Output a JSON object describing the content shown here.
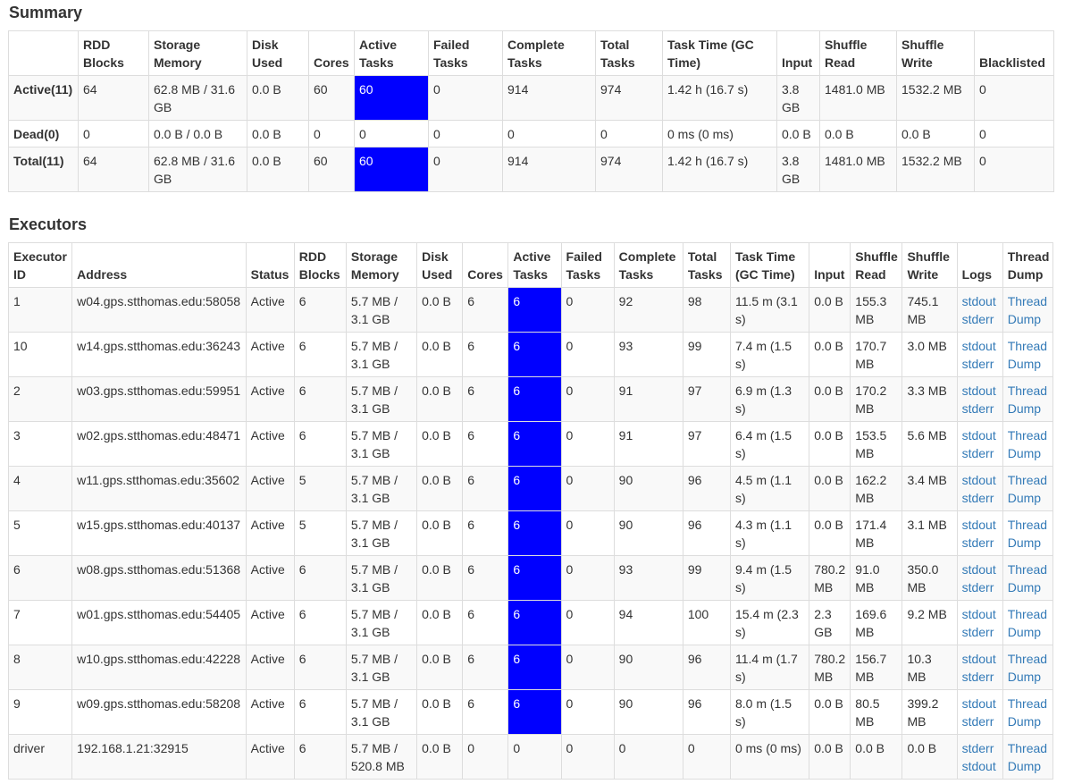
{
  "accent_color": "#0000ff",
  "link_color": "#337ab7",
  "summary": {
    "title": "Summary",
    "headers": [
      "",
      "RDD Blocks",
      "Storage Memory",
      "Disk Used",
      "Cores",
      "Active Tasks",
      "Failed Tasks",
      "Complete Tasks",
      "Total Tasks",
      "Task Time (GC Time)",
      "Input",
      "Shuffle Read",
      "Shuffle Write",
      "Blacklisted"
    ],
    "rows": [
      {
        "label": "Active(11)",
        "rdd": "64",
        "storage": "62.8 MB / 31.6 GB",
        "disk": "0.0 B",
        "cores": "60",
        "active": "60",
        "active_highlight": true,
        "failed": "0",
        "complete": "914",
        "total": "974",
        "task_time": "1.42 h (16.7 s)",
        "input": "3.8 GB",
        "shuffle_read": "1481.0 MB",
        "shuffle_write": "1532.2 MB",
        "blacklisted": "0"
      },
      {
        "label": "Dead(0)",
        "rdd": "0",
        "storage": "0.0 B / 0.0 B",
        "disk": "0.0 B",
        "cores": "0",
        "active": "0",
        "active_highlight": false,
        "failed": "0",
        "complete": "0",
        "total": "0",
        "task_time": "0 ms (0 ms)",
        "input": "0.0 B",
        "shuffle_read": "0.0 B",
        "shuffle_write": "0.0 B",
        "blacklisted": "0"
      },
      {
        "label": "Total(11)",
        "rdd": "64",
        "storage": "62.8 MB / 31.6 GB",
        "disk": "0.0 B",
        "cores": "60",
        "active": "60",
        "active_highlight": true,
        "failed": "0",
        "complete": "914",
        "total": "974",
        "task_time": "1.42 h (16.7 s)",
        "input": "3.8 GB",
        "shuffle_read": "1481.0 MB",
        "shuffle_write": "1532.2 MB",
        "blacklisted": "0"
      }
    ]
  },
  "executors": {
    "title": "Executors",
    "headers": [
      "Executor ID",
      "Address",
      "Status",
      "RDD Blocks",
      "Storage Memory",
      "Disk Used",
      "Cores",
      "Active Tasks",
      "Failed Tasks",
      "Complete Tasks",
      "Total Tasks",
      "Task Time (GC Time)",
      "Input",
      "Shuffle Read",
      "Shuffle Write",
      "Logs",
      "Thread Dump"
    ],
    "rows": [
      {
        "id": "1",
        "address": "w04.gps.stthomas.edu:58058",
        "status": "Active",
        "rdd": "6",
        "storage": "5.7 MB / 3.1 GB",
        "disk": "0.0 B",
        "cores": "6",
        "active": "6",
        "active_highlight": true,
        "failed": "0",
        "complete": "92",
        "total": "98",
        "task_time": "11.5 m (3.1 s)",
        "input": "0.0 B",
        "shuffle_read": "155.3 MB",
        "shuffle_write": "745.1 MB",
        "logs": [
          "stdout",
          "stderr"
        ],
        "thread_dump": "Thread Dump"
      },
      {
        "id": "10",
        "address": "w14.gps.stthomas.edu:36243",
        "status": "Active",
        "rdd": "6",
        "storage": "5.7 MB / 3.1 GB",
        "disk": "0.0 B",
        "cores": "6",
        "active": "6",
        "active_highlight": true,
        "failed": "0",
        "complete": "93",
        "total": "99",
        "task_time": "7.4 m (1.5 s)",
        "input": "0.0 B",
        "shuffle_read": "170.7 MB",
        "shuffle_write": "3.0 MB",
        "logs": [
          "stdout",
          "stderr"
        ],
        "thread_dump": "Thread Dump"
      },
      {
        "id": "2",
        "address": "w03.gps.stthomas.edu:59951",
        "status": "Active",
        "rdd": "6",
        "storage": "5.7 MB / 3.1 GB",
        "disk": "0.0 B",
        "cores": "6",
        "active": "6",
        "active_highlight": true,
        "failed": "0",
        "complete": "91",
        "total": "97",
        "task_time": "6.9 m (1.3 s)",
        "input": "0.0 B",
        "shuffle_read": "170.2 MB",
        "shuffle_write": "3.3 MB",
        "logs": [
          "stdout",
          "stderr"
        ],
        "thread_dump": "Thread Dump"
      },
      {
        "id": "3",
        "address": "w02.gps.stthomas.edu:48471",
        "status": "Active",
        "rdd": "6",
        "storage": "5.7 MB / 3.1 GB",
        "disk": "0.0 B",
        "cores": "6",
        "active": "6",
        "active_highlight": true,
        "failed": "0",
        "complete": "91",
        "total": "97",
        "task_time": "6.4 m (1.5 s)",
        "input": "0.0 B",
        "shuffle_read": "153.5 MB",
        "shuffle_write": "5.6 MB",
        "logs": [
          "stdout",
          "stderr"
        ],
        "thread_dump": "Thread Dump"
      },
      {
        "id": "4",
        "address": "w11.gps.stthomas.edu:35602",
        "status": "Active",
        "rdd": "5",
        "storage": "5.7 MB / 3.1 GB",
        "disk": "0.0 B",
        "cores": "6",
        "active": "6",
        "active_highlight": true,
        "failed": "0",
        "complete": "90",
        "total": "96",
        "task_time": "4.5 m (1.1 s)",
        "input": "0.0 B",
        "shuffle_read": "162.2 MB",
        "shuffle_write": "3.4 MB",
        "logs": [
          "stdout",
          "stderr"
        ],
        "thread_dump": "Thread Dump"
      },
      {
        "id": "5",
        "address": "w15.gps.stthomas.edu:40137",
        "status": "Active",
        "rdd": "5",
        "storage": "5.7 MB / 3.1 GB",
        "disk": "0.0 B",
        "cores": "6",
        "active": "6",
        "active_highlight": true,
        "failed": "0",
        "complete": "90",
        "total": "96",
        "task_time": "4.3 m (1.1 s)",
        "input": "0.0 B",
        "shuffle_read": "171.4 MB",
        "shuffle_write": "3.1 MB",
        "logs": [
          "stdout",
          "stderr"
        ],
        "thread_dump": "Thread Dump"
      },
      {
        "id": "6",
        "address": "w08.gps.stthomas.edu:51368",
        "status": "Active",
        "rdd": "6",
        "storage": "5.7 MB / 3.1 GB",
        "disk": "0.0 B",
        "cores": "6",
        "active": "6",
        "active_highlight": true,
        "failed": "0",
        "complete": "93",
        "total": "99",
        "task_time": "9.4 m (1.5 s)",
        "input": "780.2 MB",
        "shuffle_read": "91.0 MB",
        "shuffle_write": "350.0 MB",
        "logs": [
          "stdout",
          "stderr"
        ],
        "thread_dump": "Thread Dump"
      },
      {
        "id": "7",
        "address": "w01.gps.stthomas.edu:54405",
        "status": "Active",
        "rdd": "6",
        "storage": "5.7 MB / 3.1 GB",
        "disk": "0.0 B",
        "cores": "6",
        "active": "6",
        "active_highlight": true,
        "failed": "0",
        "complete": "94",
        "total": "100",
        "task_time": "15.4 m (2.3 s)",
        "input": "2.3 GB",
        "shuffle_read": "169.6 MB",
        "shuffle_write": "9.2 MB",
        "logs": [
          "stdout",
          "stderr"
        ],
        "thread_dump": "Thread Dump"
      },
      {
        "id": "8",
        "address": "w10.gps.stthomas.edu:42228",
        "status": "Active",
        "rdd": "6",
        "storage": "5.7 MB / 3.1 GB",
        "disk": "0.0 B",
        "cores": "6",
        "active": "6",
        "active_highlight": true,
        "failed": "0",
        "complete": "90",
        "total": "96",
        "task_time": "11.4 m (1.7 s)",
        "input": "780.2 MB",
        "shuffle_read": "156.7 MB",
        "shuffle_write": "10.3 MB",
        "logs": [
          "stdout",
          "stderr"
        ],
        "thread_dump": "Thread Dump"
      },
      {
        "id": "9",
        "address": "w09.gps.stthomas.edu:58208",
        "status": "Active",
        "rdd": "6",
        "storage": "5.7 MB / 3.1 GB",
        "disk": "0.0 B",
        "cores": "6",
        "active": "6",
        "active_highlight": true,
        "failed": "0",
        "complete": "90",
        "total": "96",
        "task_time": "8.0 m (1.5 s)",
        "input": "0.0 B",
        "shuffle_read": "80.5 MB",
        "shuffle_write": "399.2 MB",
        "logs": [
          "stdout",
          "stderr"
        ],
        "thread_dump": "Thread Dump"
      },
      {
        "id": "driver",
        "address": "192.168.1.21:32915",
        "status": "Active",
        "rdd": "6",
        "storage": "5.7 MB / 520.8 MB",
        "disk": "0.0 B",
        "cores": "0",
        "active": "0",
        "active_highlight": false,
        "failed": "0",
        "complete": "0",
        "total": "0",
        "task_time": "0 ms (0 ms)",
        "input": "0.0 B",
        "shuffle_read": "0.0 B",
        "shuffle_write": "0.0 B",
        "logs": [
          "stderr",
          "stdout"
        ],
        "thread_dump": "Thread Dump"
      }
    ]
  }
}
